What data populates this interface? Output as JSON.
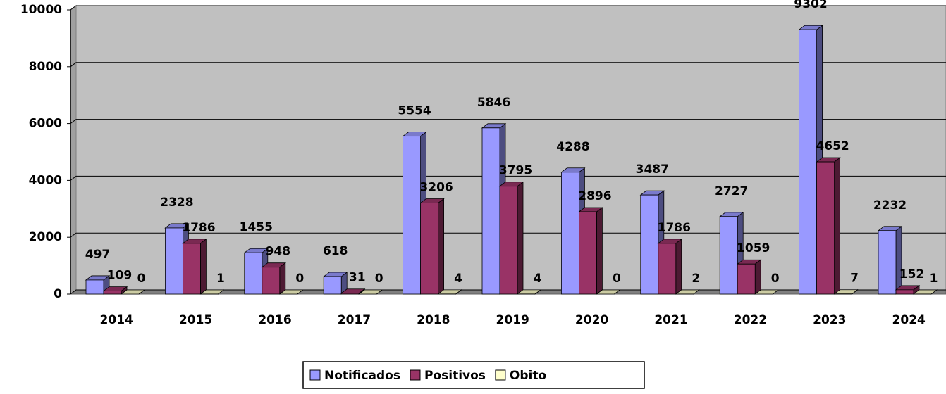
{
  "chart_data": {
    "type": "bar3d",
    "categories": [
      "2014",
      "2015",
      "2016",
      "2017",
      "2018",
      "2019",
      "2020",
      "2021",
      "2022",
      "2023",
      "2024"
    ],
    "series": [
      {
        "name": "Notificados",
        "color": "#9999ff",
        "values": [
          497,
          2328,
          1455,
          618,
          5554,
          5846,
          4288,
          3487,
          2727,
          9302,
          2232
        ]
      },
      {
        "name": "Positivos",
        "color": "#993366",
        "values": [
          109,
          1786,
          948,
          31,
          3206,
          3795,
          2896,
          1786,
          1059,
          4652,
          152
        ]
      },
      {
        "name": "Obito",
        "color": "#ffffcc",
        "values": [
          0,
          1,
          0,
          0,
          4,
          4,
          0,
          2,
          0,
          7,
          1
        ]
      }
    ],
    "ylim": [
      0,
      10000
    ],
    "yticks": [
      0,
      2000,
      4000,
      6000,
      8000,
      10000
    ],
    "grid": true,
    "legend": "bottom"
  }
}
